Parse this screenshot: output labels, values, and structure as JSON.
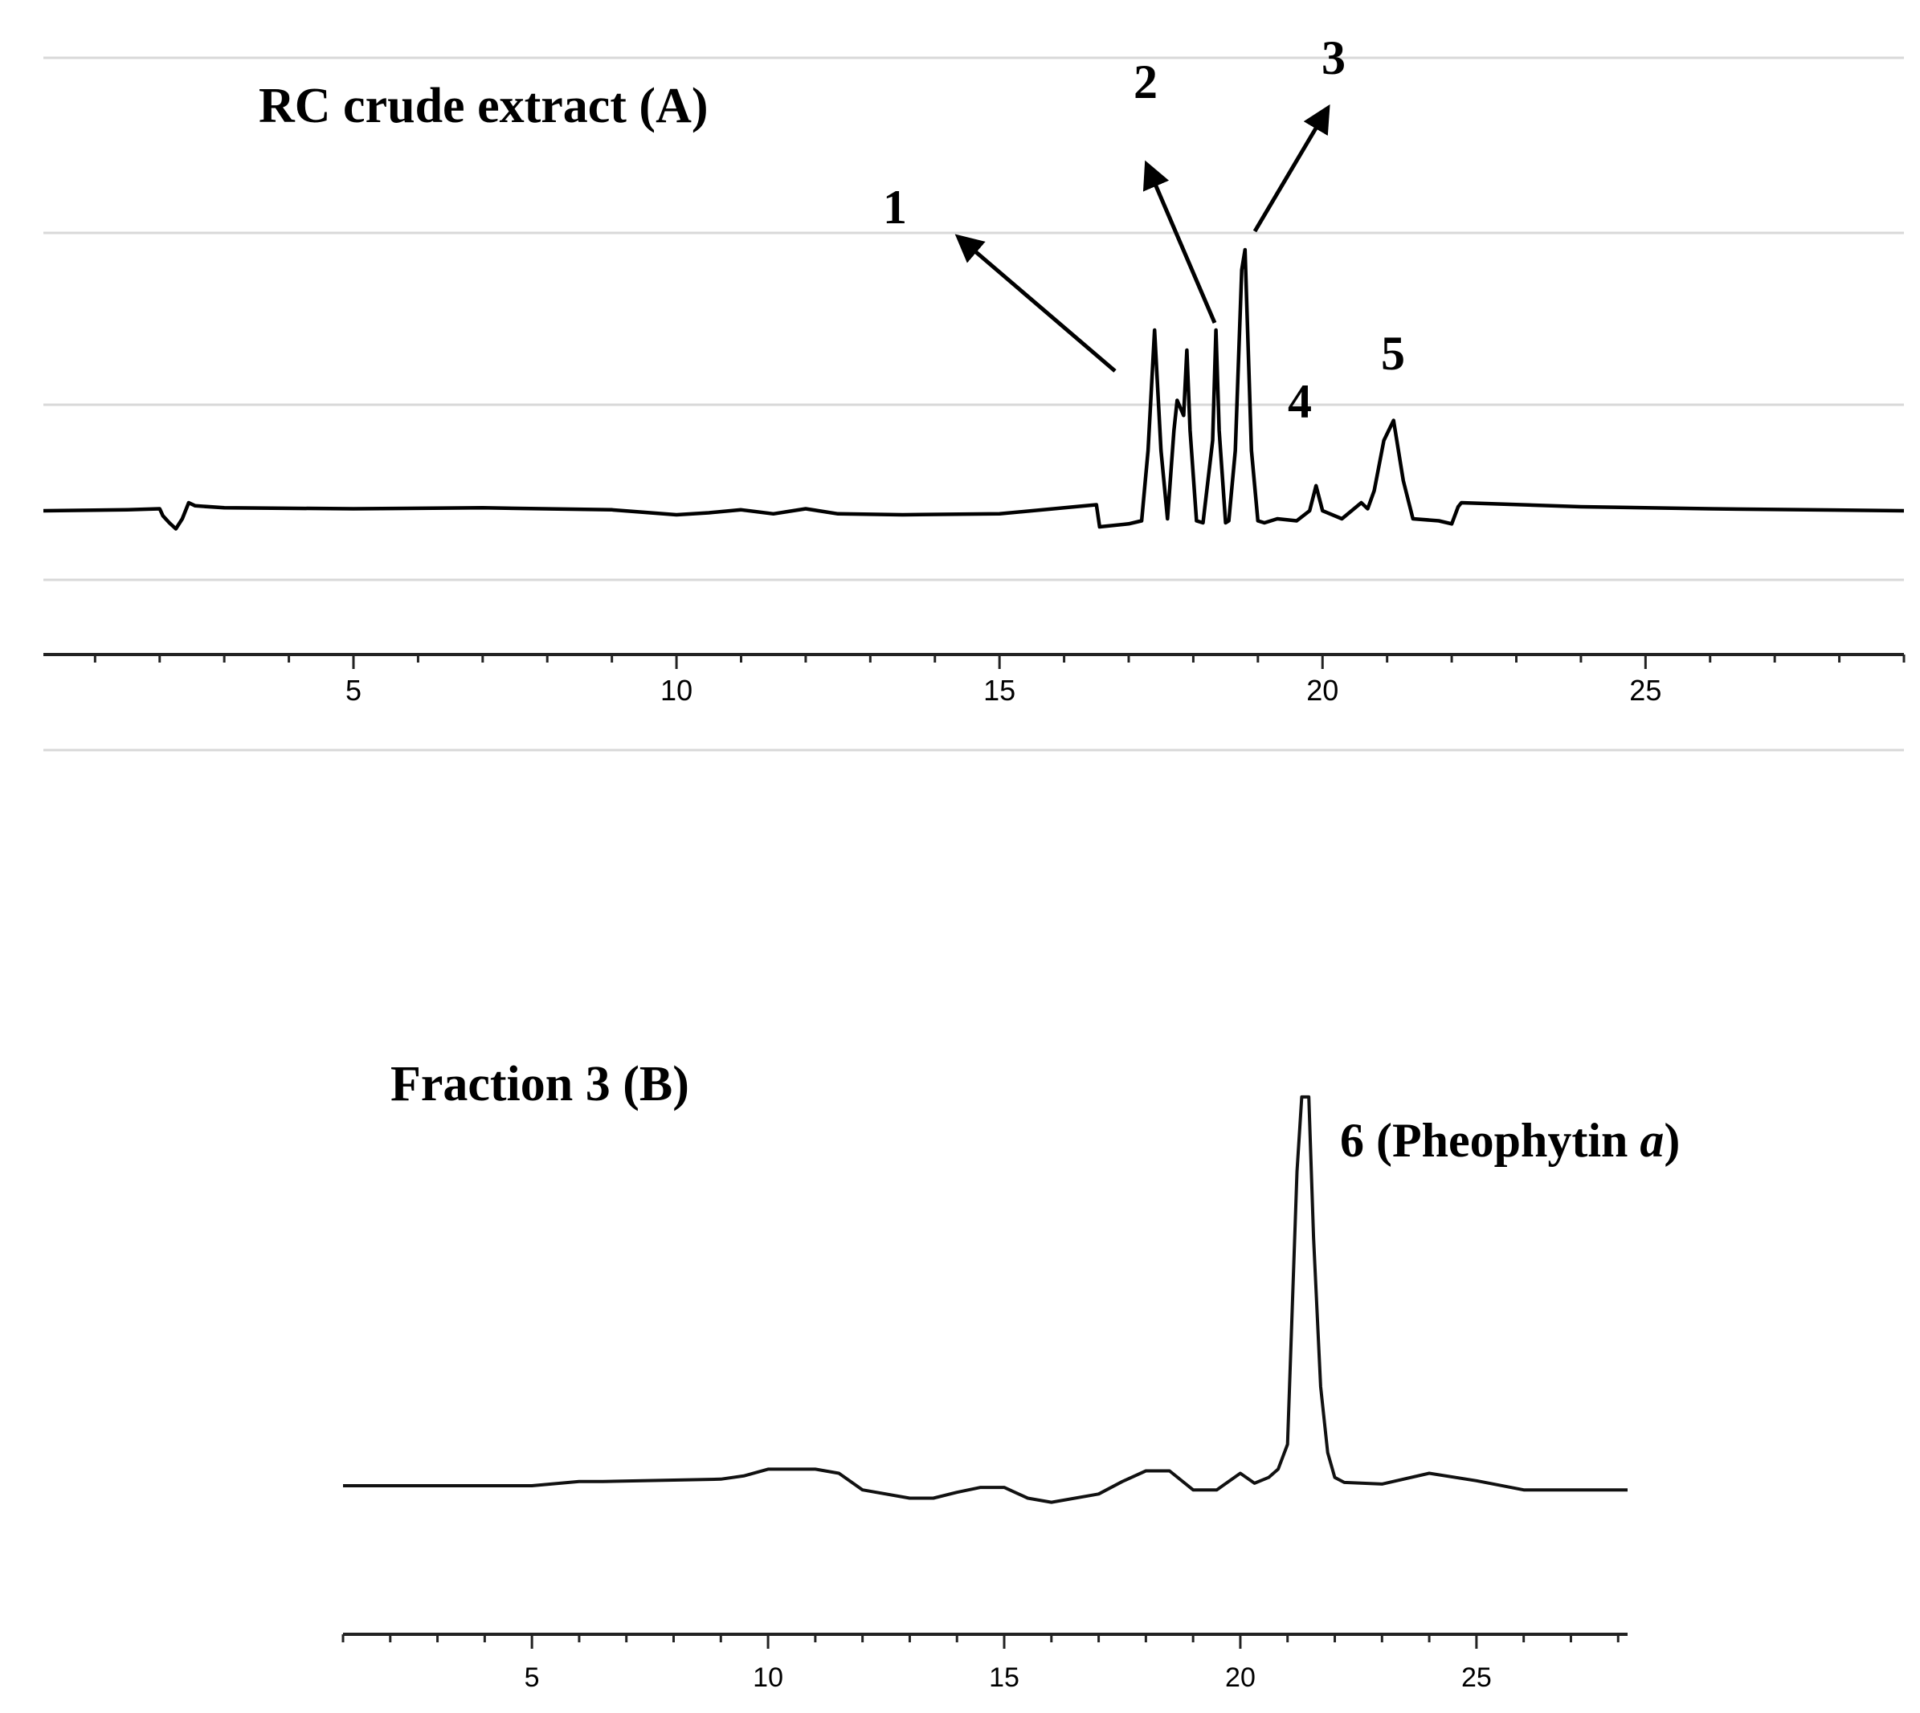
{
  "chart_data": [
    {
      "type": "line",
      "title": "RC crude extract (A)",
      "xlabel": "",
      "ylabel": "",
      "xlim": [
        0.2,
        29.0
      ],
      "ylim": [
        -3,
        36
      ],
      "x_ticks": [
        5,
        10,
        15,
        20,
        25
      ],
      "grid": true,
      "series": [
        {
          "x": [
            0.2,
            1.5,
            2.0,
            2.05,
            2.15,
            2.25,
            2.35,
            2.45,
            2.55,
            3,
            5,
            7,
            9,
            10,
            10.5,
            11,
            11.5,
            12,
            12.5,
            13.5,
            15,
            16.5,
            16.55,
            17.0,
            17.2,
            17.3,
            17.4,
            17.5,
            17.6,
            17.7,
            17.75,
            17.85,
            17.9,
            17.95,
            18.05,
            18.15,
            18.3,
            18.35,
            18.4,
            18.5,
            18.55,
            18.65,
            18.75,
            18.8,
            18.9,
            19.0,
            19.1,
            19.3,
            19.6,
            19.8,
            19.9,
            20.0,
            20.3,
            20.6,
            20.7,
            20.8,
            20.95,
            21.1,
            21.25,
            21.4,
            21.8,
            22.0,
            22.1,
            22.15,
            24,
            26,
            29.0
          ],
          "y": [
            0,
            0.1,
            0.2,
            -0.5,
            -1.2,
            -1.8,
            -0.8,
            0.8,
            0.5,
            0.3,
            0.2,
            0.3,
            0.1,
            -0.4,
            -0.2,
            0.1,
            -0.3,
            0.2,
            -0.3,
            -0.4,
            -0.3,
            0.6,
            -1.6,
            -1.3,
            -1.0,
            6,
            18,
            6,
            -0.8,
            8,
            11,
            9.5,
            16,
            8,
            -1.0,
            -1.2,
            7,
            18,
            8,
            -1.2,
            -1.0,
            6,
            24,
            26,
            6,
            -1.0,
            -1.2,
            -0.8,
            -1.0,
            0,
            2.5,
            0,
            -0.8,
            0.8,
            0.2,
            2,
            7,
            9,
            3,
            -0.8,
            -1.0,
            -1.3,
            0.4,
            0.8,
            0.4,
            0.2,
            0
          ]
        }
      ],
      "annotations": [
        "1",
        "2",
        "3",
        "4",
        "5"
      ]
    },
    {
      "type": "line",
      "title": "Fraction 3 (B)",
      "xlabel": "",
      "ylabel": "",
      "xlim": [
        1.0,
        28.2
      ],
      "ylim": [
        -4,
        50
      ],
      "x_ticks": [
        5,
        10,
        15,
        20,
        25
      ],
      "grid": false,
      "series": [
        {
          "x": [
            1.0,
            5.0,
            6.0,
            6.5,
            9.0,
            9.5,
            10.0,
            10.5,
            11.0,
            11.5,
            12.0,
            13.0,
            13.5,
            14.0,
            14.5,
            15.0,
            15.5,
            16.0,
            17.0,
            17.5,
            18.0,
            18.5,
            19.0,
            19.5,
            20.0,
            20.3,
            20.6,
            20.8,
            21.0,
            21.2,
            21.3,
            21.45,
            21.55,
            21.7,
            21.85,
            22.0,
            22.2,
            23.0,
            24.0,
            25.0,
            26.0,
            27.0,
            28.2
          ],
          "y": [
            0,
            0,
            0.5,
            0.5,
            0.8,
            1.2,
            2,
            2,
            2,
            1.5,
            -0.5,
            -1.5,
            -1.5,
            -0.8,
            -0.2,
            -0.2,
            -1.5,
            -2,
            -1.0,
            0.5,
            1.8,
            1.8,
            -0.5,
            -0.5,
            1.5,
            0.3,
            1.0,
            2,
            5,
            38,
            47,
            47,
            30,
            12,
            4,
            1,
            0.4,
            0.2,
            1.5,
            0.6,
            -0.5,
            -0.5,
            -0.5
          ]
        }
      ],
      "annotations": [
        "6 (Pheophytin a)"
      ]
    }
  ]
}
